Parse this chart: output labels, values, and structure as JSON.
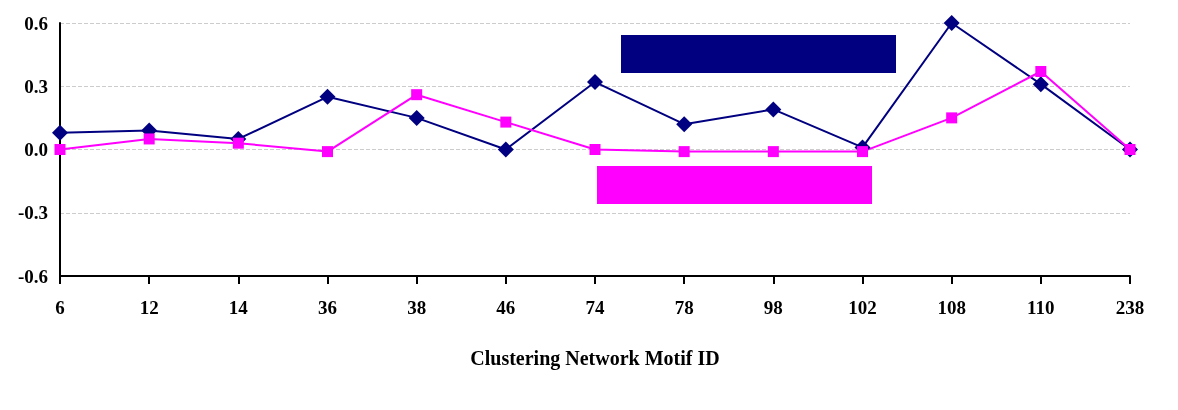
{
  "chart_data": {
    "type": "line",
    "xlabel": "Clustering Network Motif ID",
    "categories": [
      "6",
      "12",
      "14",
      "36",
      "38",
      "46",
      "74",
      "78",
      "98",
      "102",
      "108",
      "110",
      "238"
    ],
    "series": [
      {
        "color": "#000080",
        "marker": "diamond",
        "values": [
          0.08,
          0.09,
          0.05,
          0.25,
          0.15,
          0.0,
          0.32,
          0.12,
          0.19,
          0.01,
          0.6,
          0.31,
          0.0
        ]
      },
      {
        "color": "#ff00ff",
        "marker": "square",
        "values": [
          0.0,
          0.05,
          0.03,
          -0.01,
          0.26,
          0.13,
          0.0,
          -0.01,
          -0.01,
          -0.01,
          0.15,
          0.37,
          0.0
        ]
      }
    ],
    "ylim": [
      -0.6,
      0.6
    ],
    "yticks": [
      {
        "value": -0.6,
        "label": "-0.6"
      },
      {
        "value": -0.3,
        "label": "-0.3"
      },
      {
        "value": 0,
        "label": "0.0"
      },
      {
        "value": 0.3,
        "label": "0.3"
      },
      {
        "value": 0.6,
        "label": "0.6"
      }
    ],
    "grid": "y",
    "line_style": "solid"
  }
}
